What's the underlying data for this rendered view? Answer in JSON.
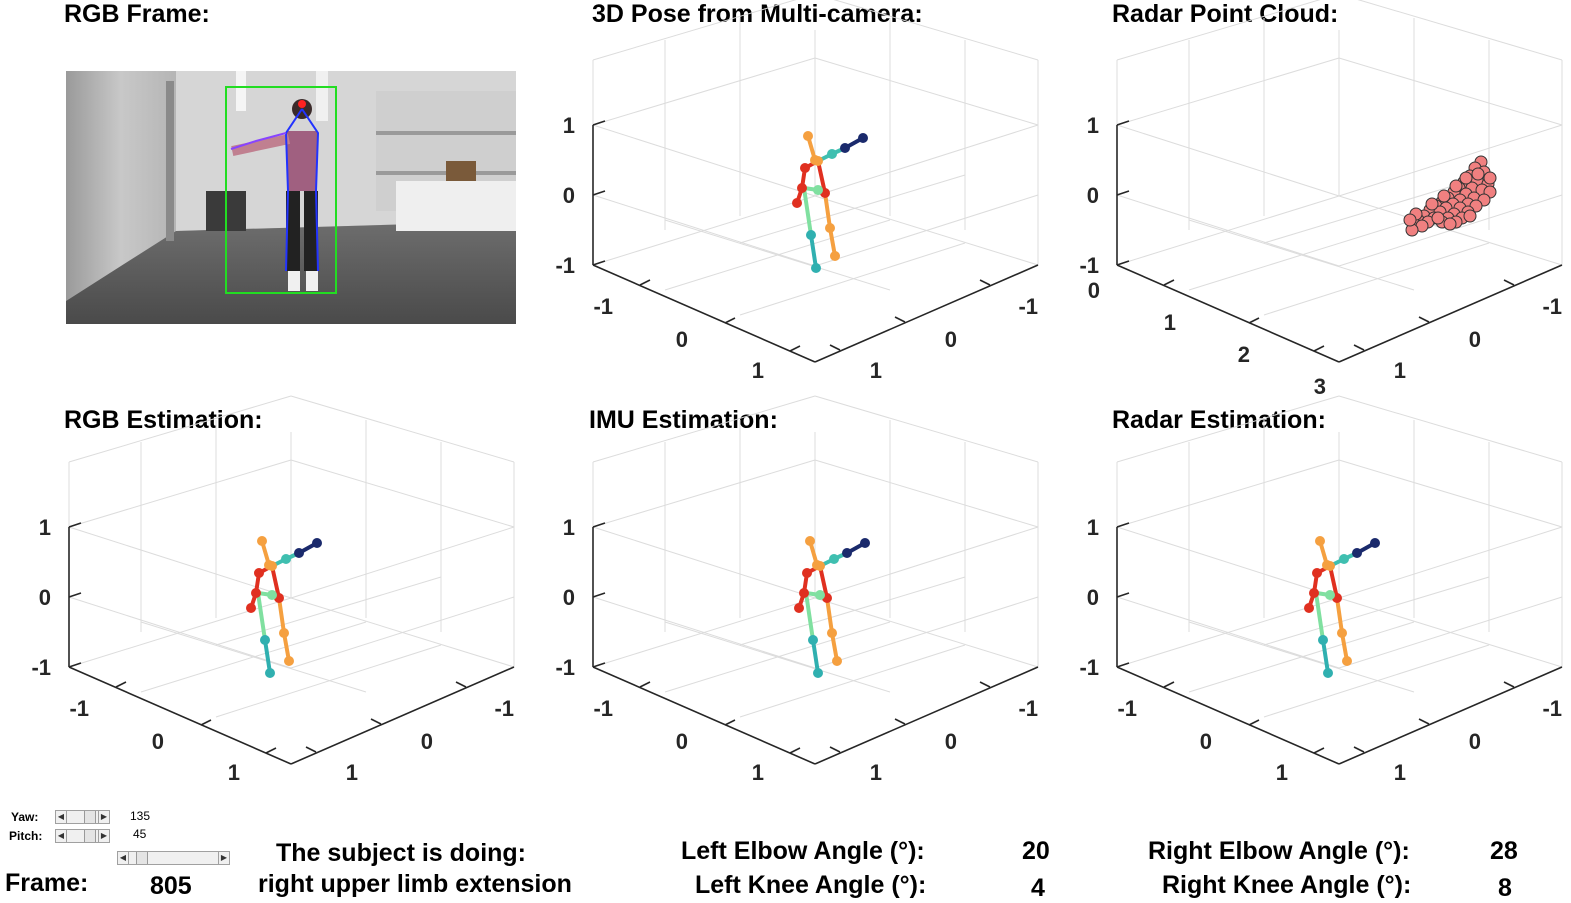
{
  "titles": {
    "rgb_frame": "RGB Frame:",
    "multicam": "3D Pose from Multi-camera:",
    "radar_cloud": "Radar Point Cloud:",
    "rgb_est": "RGB Estimation:",
    "imu_est": "IMU Estimation:",
    "radar_est": "Radar Estimation:"
  },
  "axes": {
    "z_ticks": [
      "1",
      "0",
      "-1"
    ],
    "x_ticks": [
      "-1",
      "0",
      "1"
    ],
    "y_ticks": [
      "-1",
      "0",
      "1"
    ],
    "radar_x_ticks": [
      "0",
      "1",
      "2",
      "3"
    ]
  },
  "controls": {
    "yaw_label": "Yaw:",
    "yaw_value": "135",
    "pitch_label": "Pitch:",
    "pitch_value": "45",
    "frame_label": "Frame:",
    "frame_value": "805"
  },
  "activity": {
    "label": "The subject is doing:",
    "value": "right upper limb extension"
  },
  "angles": {
    "left_elbow_label": "Left Elbow Angle (°):",
    "left_elbow_value": "20",
    "left_knee_label": "Left Knee Angle (°):",
    "left_knee_value": "4",
    "right_elbow_label": "Right Elbow Angle (°):",
    "right_elbow_value": "28",
    "right_knee_label": "Right Knee Angle (°):",
    "right_knee_value": "8"
  },
  "colors": {
    "grid": "#dcdcdc",
    "axis": "#262626",
    "radar_point": "#f08080",
    "bbox": "#22dd22"
  },
  "skeleton_colors": {
    "head_arm": "#1a2a6c",
    "arm_teal": "#3fbfb0",
    "orange": "#f5a040",
    "red": "#e03020",
    "green": "#80e0a0",
    "teal_leg": "#30b0b0"
  }
}
